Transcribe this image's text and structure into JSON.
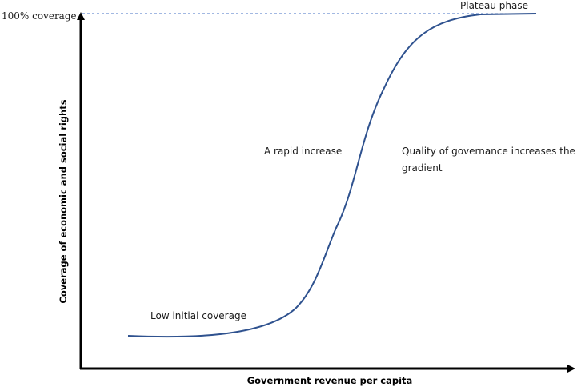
{
  "diagram": {
    "x_axis_label": "Government revenue per capita",
    "y_axis_label": "Coverage of economic and social rights",
    "y_reference_label": "100% coverage",
    "annotations": {
      "plateau": "Plateau phase",
      "rapid_increase": "A rapid increase",
      "governance_line1": "Quality of governance increases the",
      "governance_line2": "gradient",
      "low_initial": "Low initial coverage"
    },
    "colors": {
      "curve": "#2f528f",
      "reference_line": "#4472c4",
      "axis": "#000000"
    }
  }
}
